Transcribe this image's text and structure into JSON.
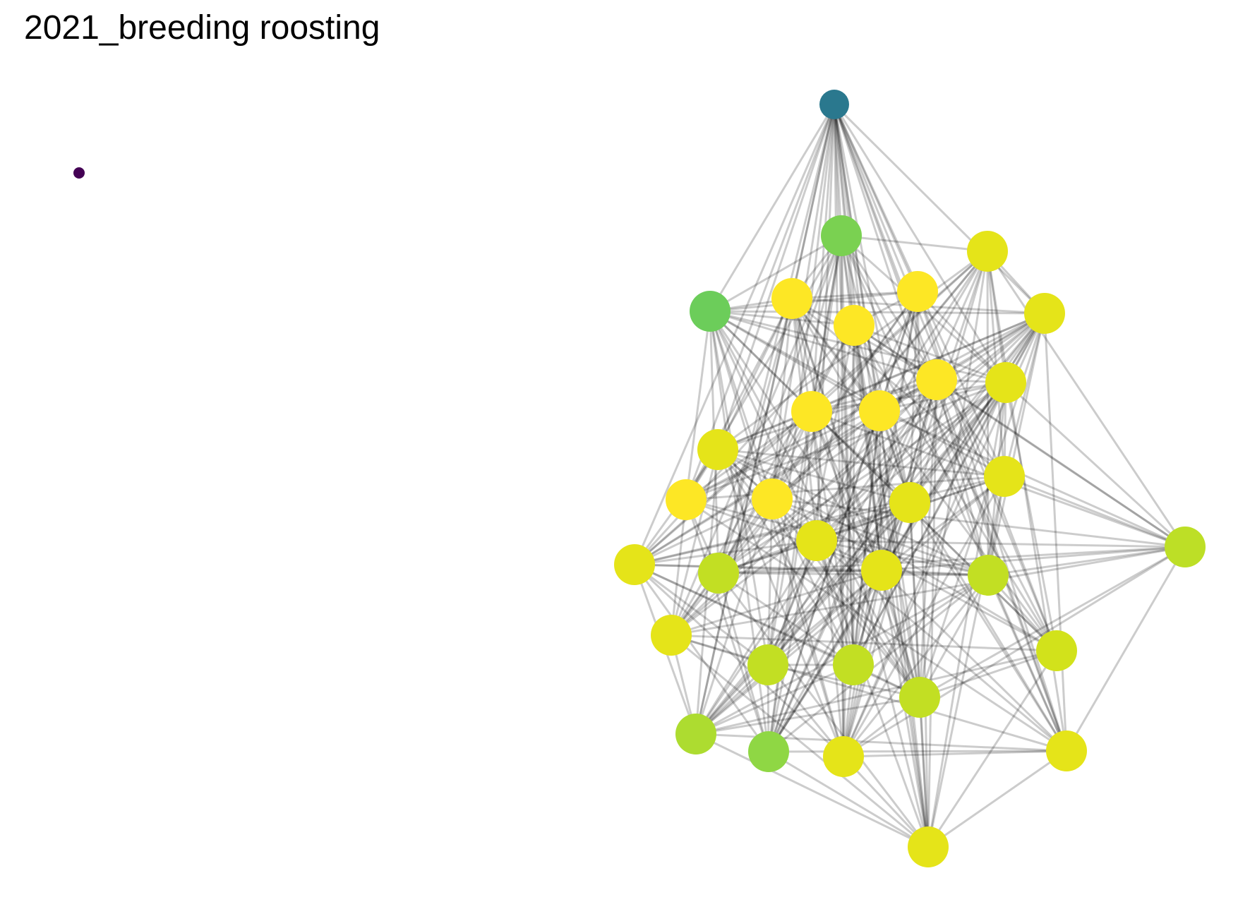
{
  "title": "2021_breeding roosting",
  "style": {
    "edge_color": "#000000",
    "edge_opacity": 0.2,
    "palette": "viridis"
  },
  "network": {
    "nodes": [
      {
        "id": "n0",
        "color": "#440154",
        "size": "small"
      },
      {
        "id": "n1",
        "color": "#2a788e",
        "size": "medium"
      },
      {
        "id": "n2",
        "color": "#7ad151",
        "size": "large"
      },
      {
        "id": "n3",
        "color": "#6ccd5a",
        "size": "large"
      },
      {
        "id": "n4",
        "color": "#fde725",
        "size": "large"
      },
      {
        "id": "n5",
        "color": "#fde725",
        "size": "large"
      },
      {
        "id": "n6",
        "color": "#fde725",
        "size": "large"
      },
      {
        "id": "n7",
        "color": "#e5e419",
        "size": "large"
      },
      {
        "id": "n8",
        "color": "#e5e419",
        "size": "large"
      },
      {
        "id": "n9",
        "color": "#fde725",
        "size": "large"
      },
      {
        "id": "n10",
        "color": "#e5e419",
        "size": "large"
      },
      {
        "id": "n11",
        "color": "#fde725",
        "size": "large"
      },
      {
        "id": "n12",
        "color": "#fde725",
        "size": "large"
      },
      {
        "id": "n13",
        "color": "#e5e419",
        "size": "large"
      },
      {
        "id": "n14",
        "color": "#fde725",
        "size": "large"
      },
      {
        "id": "n15",
        "color": "#fde725",
        "size": "large"
      },
      {
        "id": "n16",
        "color": "#e5e419",
        "size": "large"
      },
      {
        "id": "n17",
        "color": "#e5e419",
        "size": "large"
      },
      {
        "id": "n18",
        "color": "#e5e419",
        "size": "large"
      },
      {
        "id": "n19",
        "color": "#c2df23",
        "size": "large"
      },
      {
        "id": "n20",
        "color": "#c2df23",
        "size": "large"
      },
      {
        "id": "n21",
        "color": "#e5e419",
        "size": "large"
      },
      {
        "id": "n22",
        "color": "#e5e419",
        "size": "large"
      },
      {
        "id": "n23",
        "color": "#e5e419",
        "size": "large"
      },
      {
        "id": "n24",
        "color": "#d2e21b",
        "size": "large"
      },
      {
        "id": "n25",
        "color": "#c2df23",
        "size": "large"
      },
      {
        "id": "n26",
        "color": "#bddf26",
        "size": "large"
      },
      {
        "id": "n27",
        "color": "#c2df23",
        "size": "large"
      },
      {
        "id": "n28",
        "color": "#addc30",
        "size": "large"
      },
      {
        "id": "n29",
        "color": "#8fd744",
        "size": "large"
      },
      {
        "id": "n30",
        "color": "#e5e419",
        "size": "large"
      },
      {
        "id": "n31",
        "color": "#e5e419",
        "size": "large"
      },
      {
        "id": "n32",
        "color": "#e5e419",
        "size": "large"
      },
      {
        "id": "n33",
        "color": "#c2df23",
        "size": "large"
      }
    ]
  }
}
